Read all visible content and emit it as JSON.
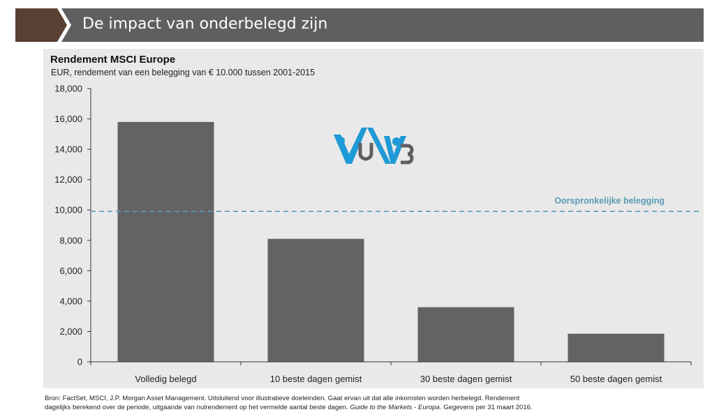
{
  "header": {
    "title": "De impact van onderbelegd zijn",
    "colors": {
      "chevron": "#5a4032",
      "bar": "#5f5f61"
    }
  },
  "watermark": {
    "text": "VUB",
    "colors": [
      "#1e9ad6",
      "#5f5f61"
    ]
  },
  "chart_data": {
    "type": "bar",
    "title": "Rendement MSCI Europe",
    "subtitle": "EUR, rendement van een belegging van € 10.000 tussen 2001-2015",
    "categories": [
      "Volledig belegd",
      "10 beste dagen gemist",
      "30 beste dagen gemist",
      "50 beste dagen gemist"
    ],
    "values": [
      15800,
      8100,
      3600,
      1850
    ],
    "ylim": [
      0,
      18000
    ],
    "yticks": [
      0,
      2000,
      4000,
      6000,
      8000,
      10000,
      12000,
      14000,
      16000,
      18000
    ],
    "ytick_labels": [
      "0",
      "2,000",
      "4,000",
      "6,000",
      "8,000",
      "10,000",
      "12,000",
      "14,000",
      "16,000",
      "18,000"
    ],
    "bar_color": "#636366",
    "reference_line": {
      "value": 10000,
      "label": "Oorspronkelijke belegging",
      "color": "#5b9bb5"
    },
    "grid": false
  },
  "footnote": {
    "line1": "Bron: FactSet, MSCI, J.P. Morgan Asset Management. Uitsluitend voor illustratieve doeleinden. Gaat ervan uit dat alle inkomsten worden herbelegd. Rendement",
    "line2_a": "dagelijks berekend over de periode, uitgaande van nulrendement op het vermelde aantal beste dagen. ",
    "line2_italic": "Guide to the Markets - Europa",
    "line2_b": ". Gegevens per 31 maart 2016."
  }
}
